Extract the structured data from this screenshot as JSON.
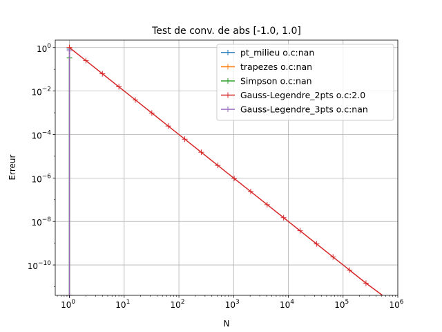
{
  "chart_data": {
    "type": "line",
    "title": "Test de conv. de abs [-1.0, 1.0]",
    "xlabel": "N",
    "ylabel": "Erreur",
    "xscale": "log",
    "yscale": "log",
    "xlim": [
      0.55,
      1000000
    ],
    "ylim": [
      4e-12,
      2.2
    ],
    "grid": true,
    "legend_position": "top-right",
    "x_ticks": [
      {
        "value": 1,
        "base": "10",
        "exp": "0"
      },
      {
        "value": 10,
        "base": "10",
        "exp": "1"
      },
      {
        "value": 100,
        "base": "10",
        "exp": "2"
      },
      {
        "value": 1000,
        "base": "10",
        "exp": "3"
      },
      {
        "value": 10000,
        "base": "10",
        "exp": "4"
      },
      {
        "value": 100000,
        "base": "10",
        "exp": "5"
      },
      {
        "value": 1000000,
        "base": "10",
        "exp": "6"
      }
    ],
    "y_ticks": [
      {
        "value": 1,
        "base": "10",
        "exp": "0"
      },
      {
        "value": 0.01,
        "base": "10",
        "exp": "−2"
      },
      {
        "value": 0.0001,
        "base": "10",
        "exp": "−4"
      },
      {
        "value": 1e-06,
        "base": "10",
        "exp": "−6"
      },
      {
        "value": 1e-08,
        "base": "10",
        "exp": "−8"
      },
      {
        "value": 1e-10,
        "base": "10",
        "exp": "−10"
      }
    ],
    "series": [
      {
        "name": "pt_milieu o.c:nan",
        "color": "#1f77b4",
        "marker": "+",
        "x": [
          1,
          1
        ],
        "y": [
          0.85,
          4e-12
        ]
      },
      {
        "name": "trapezes o.c:nan",
        "color": "#ff7f0e",
        "marker": "+",
        "x": [
          1,
          1
        ],
        "y": [
          1.0,
          4e-12
        ]
      },
      {
        "name": "Simpson o.c:nan",
        "color": "#2ca02c",
        "marker": "+",
        "x": [
          1,
          1
        ],
        "y": [
          0.333,
          4e-12
        ]
      },
      {
        "name": "Gauss-Legendre_2pts o.c:2.0",
        "color": "#d62728",
        "marker": "+",
        "x": [
          1,
          2,
          4,
          8,
          16,
          32,
          64,
          128,
          256,
          512,
          1024,
          2048,
          4096,
          8192,
          16384,
          32768,
          65536,
          131072,
          262144,
          524288
        ],
        "y": [
          1.0,
          0.25,
          0.0625,
          0.015625,
          0.00390625,
          0.0009765625,
          0.000244140625,
          6.103515625e-05,
          1.52587890625e-05,
          3.814697265625e-06,
          9.5367431640625e-07,
          2.384185791015625e-07,
          5.960464477539063e-08,
          1.4901161193847656e-08,
          3.725290298461914e-09,
          9.313225746154785e-10,
          2.3283064365386963e-10,
          5.820766091346741e-11,
          1.4551915228366852e-11,
          3.637978807091713e-12
        ]
      },
      {
        "name": "Gauss-Legendre_3pts o.c:nan",
        "color": "#9467bd",
        "marker": "+",
        "x": [
          1,
          1
        ],
        "y": [
          0.7,
          4e-12
        ]
      }
    ]
  }
}
